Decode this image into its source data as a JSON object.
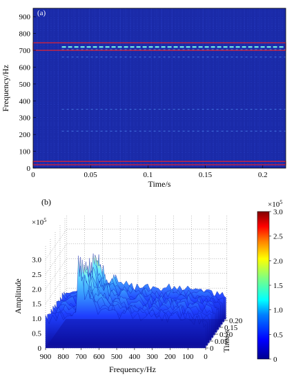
{
  "chart_data": [
    {
      "panel_label": "(a)",
      "type": "heatmap",
      "xlabel": "Time/s",
      "ylabel": "Frequency/Hz",
      "xlim": [
        0,
        0.22
      ],
      "ylim": [
        0,
        950
      ],
      "xticks": [
        0,
        0.05,
        0.1,
        0.15,
        0.2
      ],
      "xtick_labels": [
        "0",
        "0.05",
        "0.1",
        "0.15",
        "0.2"
      ],
      "yticks": [
        0,
        100,
        200,
        300,
        400,
        500,
        600,
        700,
        800,
        900
      ],
      "ytick_labels": [
        "0",
        "100",
        "200",
        "300",
        "400",
        "500",
        "600",
        "700",
        "800",
        "900"
      ],
      "highlight_bands": [
        {
          "from": 700,
          "to": 745,
          "color": "#ff2020"
        },
        {
          "from": 20,
          "to": 40,
          "color": "#ff2020"
        }
      ],
      "strong_lines_hz": [
        720,
        705,
        660,
        350,
        220
      ],
      "background_color": "#1a2aa8"
    },
    {
      "panel_label": "(b)",
      "type": "area",
      "xlabel": "Frequency/Hz",
      "ylabel": "Amplitude",
      "zlabel": "Time/s",
      "xlim": [
        900,
        0
      ],
      "xticks": [
        900,
        800,
        700,
        600,
        500,
        400,
        300,
        200,
        100,
        0
      ],
      "xtick_labels": [
        "900",
        "800",
        "700",
        "600",
        "500",
        "400",
        "300",
        "200",
        "100",
        "0"
      ],
      "ylim": [
        0,
        3.5
      ],
      "yticks": [
        0,
        0.5,
        1.0,
        1.5,
        2.0,
        2.5,
        3.0
      ],
      "ytick_labels": [
        "0",
        "0.5",
        "1.0",
        "1.5",
        "2.0",
        "2.5",
        "3.0"
      ],
      "y_multiplier": "×10",
      "y_multiplier_exp": "5",
      "time_ticks": [
        0,
        0.05,
        0.1,
        0.15,
        0.2
      ],
      "time_tick_labels": [
        "0",
        "0.05",
        "0.10",
        "0.15",
        "0.20"
      ],
      "spectrum": {
        "frequency_hz": [
          900,
          860,
          820,
          780,
          750,
          730,
          715,
          705,
          690,
          670,
          650,
          620,
          590,
          560,
          530,
          500,
          470,
          440,
          410,
          380,
          350,
          320,
          290,
          260,
          230,
          200,
          170,
          140,
          110,
          80,
          50,
          20,
          0
        ],
        "amplitude_e5": [
          1.05,
          1.1,
          1.15,
          1.05,
          1.1,
          1.3,
          2.9,
          2.6,
          2.3,
          2.0,
          1.8,
          1.6,
          1.4,
          1.3,
          1.35,
          1.2,
          1.15,
          1.25,
          1.1,
          1.15,
          1.1,
          1.2,
          1.1,
          1.15,
          1.2,
          1.1,
          1.15,
          1.05,
          1.1,
          1.0,
          1.05,
          0.9,
          0.85
        ]
      }
    }
  ],
  "colorbar": {
    "multiplier": "×10",
    "multiplier_exp": "5",
    "ticks": [
      0,
      0.5,
      1.0,
      1.5,
      2.0,
      2.5,
      3.0
    ],
    "tick_labels": [
      "0",
      "0.5",
      "1.0",
      "1.5",
      "2.0",
      "2.5",
      "3.0"
    ],
    "colors": [
      "#00008f",
      "#0000ff",
      "#0080ff",
      "#00ffff",
      "#80ff80",
      "#ffff00",
      "#ff8000",
      "#ff0000",
      "#800000"
    ]
  }
}
